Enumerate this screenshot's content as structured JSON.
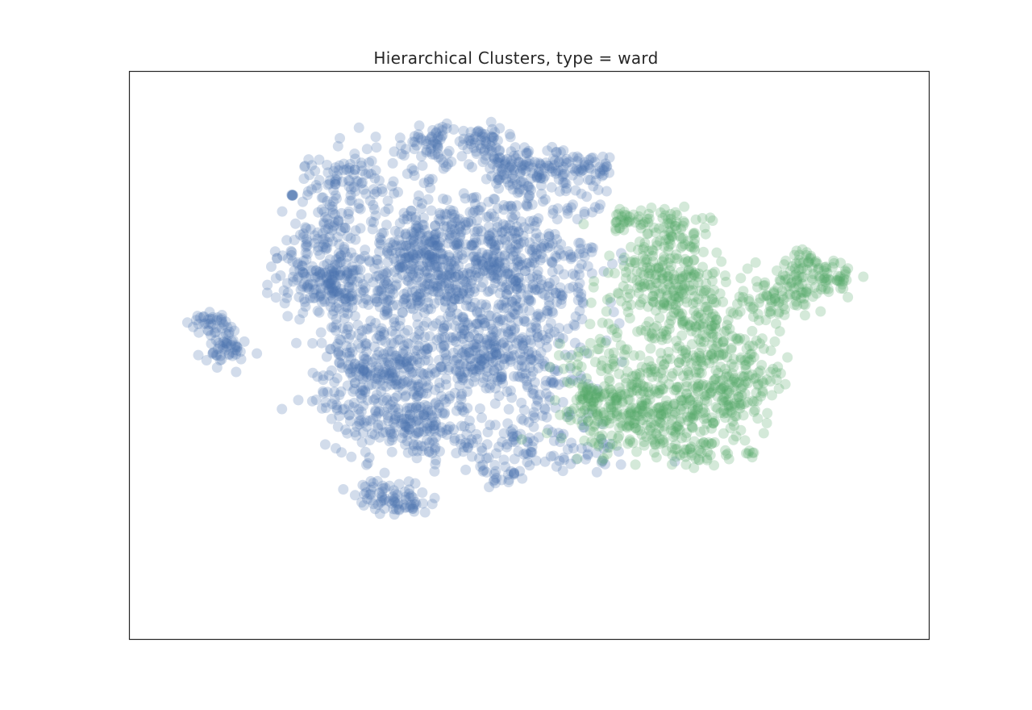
{
  "chart_data": {
    "type": "scatter",
    "title": "Hierarchical Clusters, type = ward",
    "xlabel": "",
    "ylabel": "",
    "x_ticks": [],
    "y_ticks": [],
    "xlim": [
      -50,
      70
    ],
    "ylim": [
      -52,
      43
    ],
    "grid": false,
    "legend": "none",
    "marker_alpha": 0.25,
    "series": [
      {
        "name": "",
        "color": "#4c72b0",
        "clusters": [
          {
            "cx": -37.5,
            "cy": 0.5,
            "sx": 0.9,
            "sy": 0.7,
            "n": 40
          },
          {
            "cx": -35.5,
            "cy": -3.5,
            "sx": 1.0,
            "sy": 0.9,
            "n": 45
          },
          {
            "cx": -25.5,
            "cy": 22.2,
            "sx": 0.05,
            "sy": 0.05,
            "n": 6
          },
          {
            "cx": -17.0,
            "cy": 24.0,
            "sx": 2.2,
            "sy": 2.0,
            "n": 110
          },
          {
            "cx": -21.5,
            "cy": 13.0,
            "sx": 2.2,
            "sy": 2.2,
            "n": 110
          },
          {
            "cx": -22.5,
            "cy": 7.5,
            "sx": 1.8,
            "sy": 1.6,
            "n": 75
          },
          {
            "cx": -18.5,
            "cy": 7.0,
            "sx": 1.8,
            "sy": 1.8,
            "n": 75
          },
          {
            "cx": -8.0,
            "cy": 11.5,
            "sx": 2.5,
            "sy": 3.5,
            "n": 170
          },
          {
            "cx": -5.0,
            "cy": 14.5,
            "sx": 2.0,
            "sy": 2.2,
            "n": 110
          },
          {
            "cx": -2.0,
            "cy": 7.0,
            "sx": 3.5,
            "sy": 2.0,
            "n": 170
          },
          {
            "cx": 3.5,
            "cy": 13.0,
            "sx": 2.2,
            "sy": 2.5,
            "n": 130
          },
          {
            "cx": 11.0,
            "cy": 11.5,
            "sx": 3.0,
            "sy": 2.5,
            "n": 160
          },
          {
            "cx": 4.5,
            "cy": -0.5,
            "sx": 3.5,
            "sy": 2.5,
            "n": 170
          },
          {
            "cx": 2.5,
            "cy": -6.0,
            "sx": 3.5,
            "sy": 2.2,
            "n": 170
          },
          {
            "cx": -12.0,
            "cy": -6.0,
            "sx": 3.0,
            "sy": 2.2,
            "n": 170
          },
          {
            "cx": -11.5,
            "cy": -13.0,
            "sx": 3.0,
            "sy": 2.5,
            "n": 180
          },
          {
            "cx": -6.0,
            "cy": -16.0,
            "sx": 2.2,
            "sy": 1.5,
            "n": 90
          },
          {
            "cx": -4.5,
            "cy": 30.5,
            "sx": 1.3,
            "sy": 1.2,
            "n": 60
          },
          {
            "cx": 3.0,
            "cy": 31.0,
            "sx": 1.3,
            "sy": 1.2,
            "n": 60
          },
          {
            "cx": 7.5,
            "cy": 26.5,
            "sx": 1.3,
            "sy": 1.0,
            "n": 50
          },
          {
            "cx": 14.0,
            "cy": 27.0,
            "sx": 1.2,
            "sy": 1.0,
            "n": 45
          },
          {
            "cx": 19.0,
            "cy": 26.0,
            "sx": 1.3,
            "sy": 1.0,
            "n": 45
          },
          {
            "cx": 10.0,
            "cy": 26.0,
            "sx": 1.0,
            "sy": 1.0,
            "n": 35
          },
          {
            "cx": -12.5,
            "cy": -27.5,
            "sx": 1.2,
            "sy": 0.8,
            "n": 40
          },
          {
            "cx": -8.5,
            "cy": -29.0,
            "sx": 1.0,
            "sy": 0.9,
            "n": 40
          },
          {
            "cx": 5.5,
            "cy": -24.5,
            "sx": 1.3,
            "sy": 0.7,
            "n": 25
          },
          {
            "cx": 13.0,
            "cy": -10.5,
            "sx": 2.0,
            "sy": 2.5,
            "n": 60
          },
          {
            "cx": 10.0,
            "cy": -19.0,
            "sx": 3.0,
            "sy": 1.5,
            "n": 50
          },
          {
            "cx": 1.5,
            "cy": -20.0,
            "sx": 3.0,
            "sy": 1.2,
            "n": 40
          },
          {
            "cx": 17.0,
            "cy": -21.0,
            "sx": 3.0,
            "sy": 1.0,
            "n": 30
          },
          {
            "cx": 8.5,
            "cy": 20.5,
            "sx": 4.0,
            "sy": 1.5,
            "n": 50
          },
          {
            "cx": 15.0,
            "cy": 4.5,
            "sx": 2.0,
            "sy": 2.0,
            "n": 40
          },
          {
            "cx": -13.0,
            "cy": 1.0,
            "sx": 3.0,
            "sy": 2.0,
            "n": 50
          }
        ]
      },
      {
        "name": "",
        "color": "#55a868",
        "clusters": [
          {
            "cx": 27.0,
            "cy": -8.5,
            "sx": 3.0,
            "sy": 3.5,
            "n": 190
          },
          {
            "cx": 22.5,
            "cy": -14.0,
            "sx": 2.5,
            "sy": 2.2,
            "n": 130
          },
          {
            "cx": 29.0,
            "cy": 8.0,
            "sx": 2.2,
            "sy": 2.2,
            "n": 130
          },
          {
            "cx": 34.0,
            "cy": 4.0,
            "sx": 2.0,
            "sy": 3.0,
            "n": 140
          },
          {
            "cx": 39.0,
            "cy": -6.0,
            "sx": 2.2,
            "sy": 3.0,
            "n": 150
          },
          {
            "cx": 33.0,
            "cy": -15.5,
            "sx": 2.5,
            "sy": 2.0,
            "n": 120
          },
          {
            "cx": 41.5,
            "cy": -10.0,
            "sx": 2.0,
            "sy": 2.0,
            "n": 80
          },
          {
            "cx": 32.0,
            "cy": 16.5,
            "sx": 1.5,
            "sy": 1.0,
            "n": 50
          },
          {
            "cx": 25.0,
            "cy": 17.5,
            "sx": 1.3,
            "sy": 0.8,
            "n": 40
          },
          {
            "cx": 50.0,
            "cy": 6.0,
            "sx": 1.6,
            "sy": 1.2,
            "n": 70
          },
          {
            "cx": 55.5,
            "cy": 9.0,
            "sx": 1.3,
            "sy": 0.9,
            "n": 40
          },
          {
            "cx": 51.0,
            "cy": 11.0,
            "sx": 1.0,
            "sy": 0.7,
            "n": 30
          },
          {
            "cx": 45.0,
            "cy": 4.0,
            "sx": 1.2,
            "sy": 1.0,
            "n": 30
          },
          {
            "cx": 35.0,
            "cy": -20.5,
            "sx": 2.0,
            "sy": 1.0,
            "n": 35
          },
          {
            "cx": 18.5,
            "cy": -9.0,
            "sx": 1.0,
            "sy": 2.5,
            "n": 30
          },
          {
            "cx": 43.0,
            "cy": -21.0,
            "sx": 0.3,
            "sy": 0.3,
            "n": 6
          }
        ]
      }
    ]
  }
}
